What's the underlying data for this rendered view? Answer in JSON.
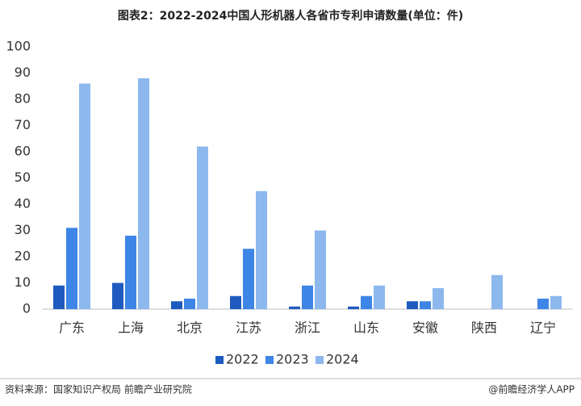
{
  "chart_data": {
    "type": "bar",
    "title": "图表2：2022-2024中国人形机器人各省市专利申请数量(单位：件)",
    "categories": [
      "广东",
      "上海",
      "北京",
      "江苏",
      "浙江",
      "山东",
      "安徽",
      "陕西",
      "辽宁"
    ],
    "series": [
      {
        "name": "2022",
        "color": "#1f5bbf",
        "values": [
          9,
          10,
          3,
          5,
          1,
          1,
          3,
          0,
          0
        ]
      },
      {
        "name": "2023",
        "color": "#3d85e6",
        "values": [
          31,
          28,
          4,
          23,
          9,
          5,
          3,
          0,
          4
        ]
      },
      {
        "name": "2024",
        "color": "#8db8ee",
        "values": [
          86,
          88,
          62,
          45,
          30,
          9,
          8,
          13,
          5
        ]
      }
    ],
    "ylim": [
      0,
      100
    ],
    "yticks": [
      0,
      10,
      20,
      30,
      40,
      50,
      60,
      70,
      80,
      90,
      100
    ],
    "grid": false,
    "legend": "bottom",
    "source": "资料来源：国家知识产权局 前瞻产业研究院",
    "credit": "@前瞻经济学人APP"
  }
}
